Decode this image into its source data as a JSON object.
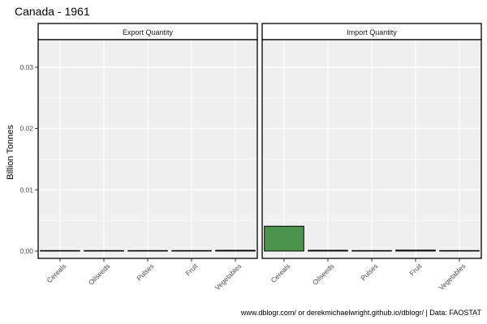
{
  "chart_data": {
    "type": "bar",
    "title": "Canada - 1961",
    "ylabel": "Billion Tonnes",
    "xlabel": "",
    "ylim": [
      -0.0012,
      0.0345
    ],
    "yticks": [
      0.0,
      0.01,
      0.02,
      0.03
    ],
    "ytick_labels": [
      "0.00",
      "0.01",
      "0.02",
      "0.03"
    ],
    "grid": true,
    "categories": [
      "Cereals",
      "Oilseeds",
      "Pulses",
      "Fruit",
      "Vegetables"
    ],
    "panels": [
      {
        "name": "Export Quantity",
        "values": [
          2e-05,
          1e-05,
          0.0,
          1e-05,
          0.00012
        ]
      },
      {
        "name": "Import Quantity",
        "values": [
          0.00405,
          0.00012,
          0.0,
          0.00015,
          0.0
        ]
      }
    ],
    "bar_color": "#3a8a3a",
    "panel_bg": "#f0f0f0",
    "caption": "www.dblogr.com/ or derekmichaelwright.github.io/dblogr/ | Data: FAOSTAT"
  }
}
